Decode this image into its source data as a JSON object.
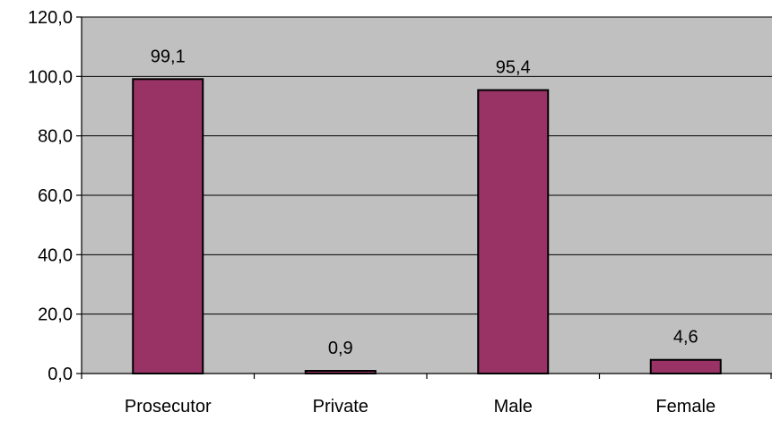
{
  "chart_data": {
    "type": "bar",
    "categories": [
      "Prosecutor",
      "Private",
      "Male",
      "Female"
    ],
    "values": [
      99.1,
      0.9,
      95.4,
      4.6
    ],
    "data_labels": [
      "99,1",
      "0,9",
      "95,4",
      "4,6"
    ],
    "ylim": [
      0,
      120
    ],
    "yticks": [
      0,
      20,
      40,
      60,
      80,
      100,
      120
    ],
    "ytick_labels": [
      "0,0",
      "20,0",
      "40,0",
      "60,0",
      "80,0",
      "100,0",
      "120,0"
    ],
    "grid": true,
    "legend": "none",
    "colors": {
      "plot_background": "#c0c0c0",
      "bar_fill": "#993366",
      "bar_edge": "#000000",
      "gridline": "#000000"
    }
  }
}
